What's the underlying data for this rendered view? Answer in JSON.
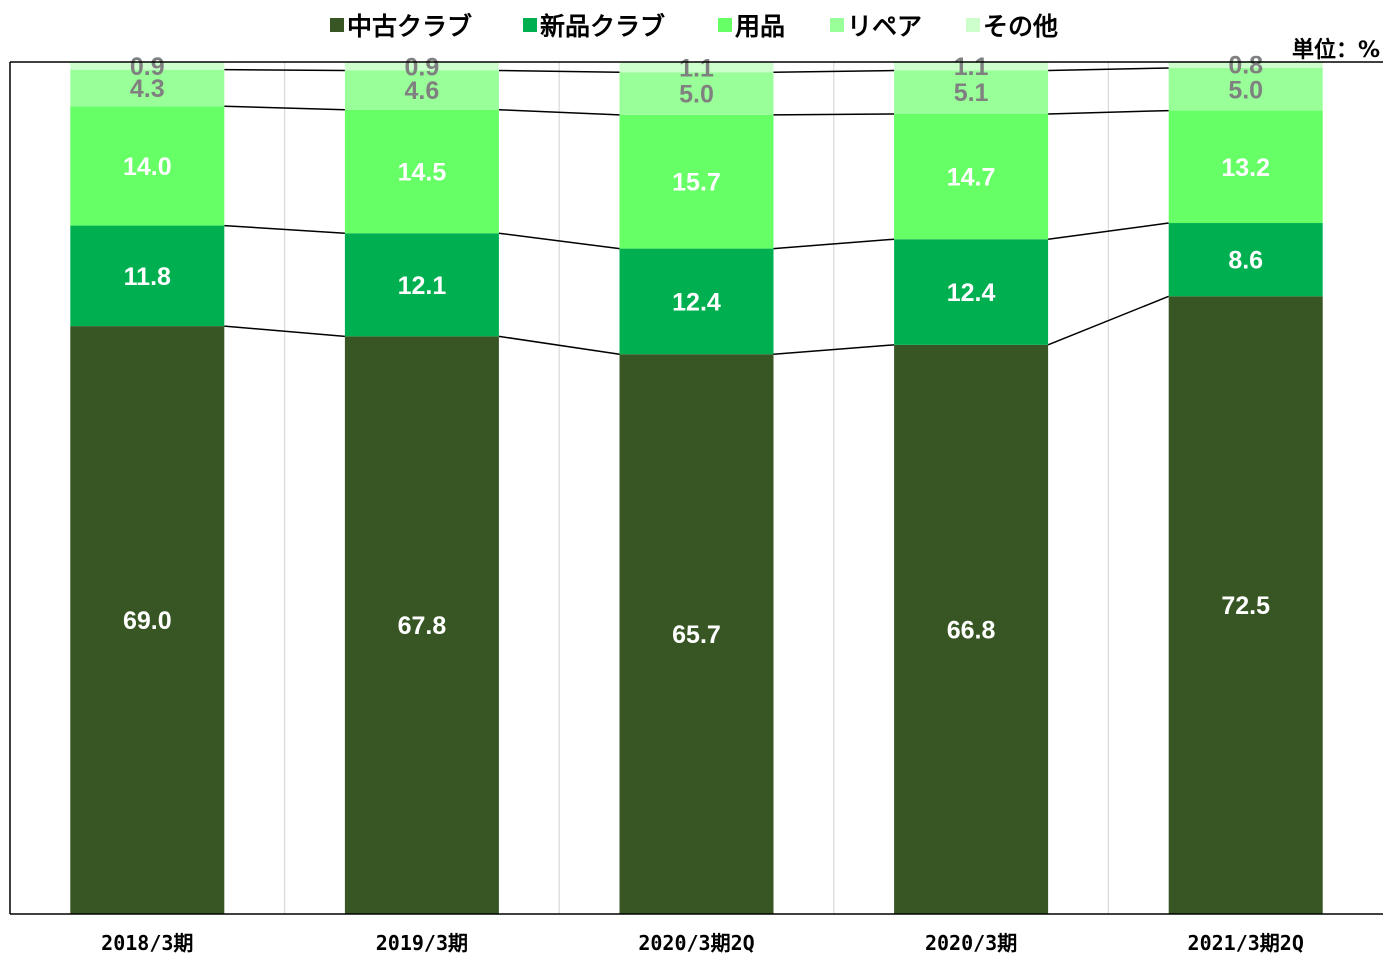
{
  "chart_data": {
    "type": "bar",
    "stacked": true,
    "unit_label": "単位：%",
    "ylim": [
      0,
      100
    ],
    "grid": "vertical",
    "legend_position": "top",
    "categories": [
      "2018/3期",
      "2019/3期",
      "2020/3期2Q",
      "2020/3期",
      "2021/3期2Q"
    ],
    "series": [
      {
        "name": "中古クラブ",
        "color": "#375623",
        "label_color": "#ffffff",
        "values": [
          69.0,
          67.8,
          65.7,
          66.8,
          72.5
        ]
      },
      {
        "name": "新品クラブ",
        "color": "#00b050",
        "label_color": "#ffffff",
        "values": [
          11.8,
          12.1,
          12.4,
          12.4,
          8.6
        ]
      },
      {
        "name": "用品",
        "color": "#66ff66",
        "label_color": "#ffffff",
        "values": [
          14.0,
          14.5,
          15.7,
          14.7,
          13.2
        ]
      },
      {
        "name": "リペア",
        "color": "#99ff99",
        "label_color": "#808080",
        "values": [
          4.3,
          4.6,
          5.0,
          5.1,
          5.0
        ]
      },
      {
        "name": "その他",
        "color": "#ccffcc",
        "label_color": "#808080",
        "values": [
          0.9,
          0.9,
          1.1,
          1.1,
          0.8
        ]
      }
    ]
  }
}
